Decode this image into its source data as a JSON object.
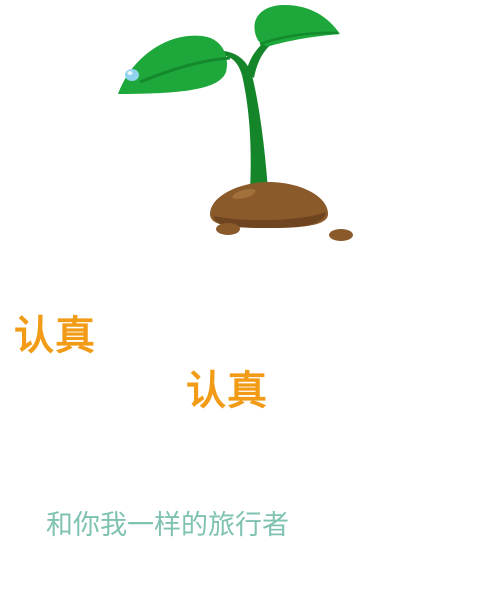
{
  "illustration": {
    "icon": "sprout-icon"
  },
  "headlines": [
    {
      "text": "认真"
    },
    {
      "text": "认真"
    }
  ],
  "tagline": {
    "text": "和你我一样的旅行者"
  },
  "colors": {
    "headline": "#f29b16",
    "tagline": "#7fc2b2",
    "leaf": "#1ea83c",
    "leaf_dark": "#148a2c",
    "stem": "#15852a",
    "soil": "#8a5a2b",
    "soil_dark": "#6e4520",
    "dew": "#8fd3ee"
  }
}
